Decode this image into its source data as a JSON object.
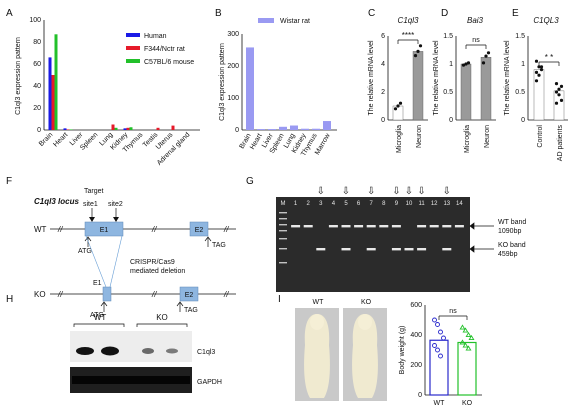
{
  "panel_letters": [
    "A",
    "B",
    "C",
    "D",
    "E",
    "F",
    "G",
    "H",
    "I"
  ],
  "colors": {
    "human": "#1a1ae6",
    "f344": "#e61a2a",
    "c57": "#22c02a",
    "wistar": "#9a9af2",
    "neuron": "#9a9a9a",
    "wt": "#2a2acc",
    "ko": "#22c02a",
    "gel_bg": "#2b2b2b",
    "gel_band": "#e8e8e8",
    "exon": "#8eb6e0"
  },
  "chart_data": [
    {
      "type": "bar",
      "ylabel": "C1ql3 expression pattern",
      "ylim": [
        0,
        100
      ],
      "yticks": [
        0,
        20,
        40,
        60,
        80,
        100
      ],
      "categories": [
        "Brain",
        "Heart",
        "Liver",
        "Spleen",
        "Lung",
        "Kidney",
        "Thymus",
        "Testis",
        "Uterus",
        "Adrenal gland"
      ],
      "series": [
        {
          "name": "Human",
          "values": [
            66,
            1.5,
            0,
            0,
            0,
            1.5,
            0,
            0,
            0,
            0
          ]
        },
        {
          "name": "F344/Nctr rat",
          "values": [
            50,
            0.5,
            0,
            0,
            5,
            2,
            0,
            2,
            4,
            0
          ]
        },
        {
          "name": "C57BL/6 mouse",
          "values": [
            87,
            0.5,
            0,
            0,
            2,
            2.5,
            0,
            0,
            0,
            0
          ]
        }
      ]
    },
    {
      "type": "bar",
      "ylabel": "C1ql3 expression pattern",
      "ylim": [
        0,
        300
      ],
      "yticks": [
        0,
        100,
        200,
        300
      ],
      "categories": [
        "Brain",
        "Heart",
        "Liver",
        "Spleen",
        "Lung",
        "Kidney",
        "Thymus",
        "Marrow"
      ],
      "series": [
        {
          "name": "Wistar rat",
          "values": [
            258,
            3,
            3,
            10,
            14,
            4,
            4,
            28
          ]
        }
      ]
    },
    {
      "type": "bar",
      "title": "C1ql3",
      "ylabel": "The relative mRNA level",
      "ylim": [
        0,
        6
      ],
      "yticks": [
        0,
        2,
        4,
        6
      ],
      "categories": [
        "Microglia",
        "Neuron"
      ],
      "values": [
        1,
        4.9
      ],
      "points": [
        [
          0.8,
          1.0,
          1.2
        ],
        [
          4.6,
          4.9,
          5.3
        ]
      ],
      "significance": "****"
    },
    {
      "type": "bar",
      "title": "Bai3",
      "ylabel": "The relative mRNA level",
      "ylim": [
        0,
        1.5
      ],
      "yticks": [
        0.0,
        0.5,
        1.0,
        1.5
      ],
      "categories": [
        "Microglia",
        "Neuron"
      ],
      "values": [
        1,
        1.12
      ],
      "points": [
        [
          0.98,
          1.0,
          1.02
        ],
        [
          1.02,
          1.14,
          1.2
        ]
      ],
      "significance": "ns"
    },
    {
      "type": "bar",
      "title": "C1QL3",
      "ylabel": "The relative mRNA level",
      "ylim": [
        0,
        1.5
      ],
      "yticks": [
        0.0,
        0.5,
        1.0,
        1.5
      ],
      "categories": [
        "Control",
        "AD patients"
      ],
      "values": [
        0.9,
        0.52
      ],
      "points": [
        [
          1.05,
          0.95,
          0.9,
          0.85,
          0.8,
          0.95,
          0.7
        ],
        [
          0.65,
          0.55,
          0.6,
          0.5,
          0.45,
          0.35,
          0.3
        ]
      ],
      "significance": "* *"
    },
    {
      "type": "bar",
      "ylabel": "Body weight (g)",
      "ylim": [
        0,
        600
      ],
      "yticks": [
        0,
        200,
        400,
        600
      ],
      "categories": [
        "WT",
        "KO"
      ],
      "values": [
        365,
        350
      ],
      "points": [
        [
          500,
          470,
          420,
          380,
          330,
          300,
          260
        ],
        [
          450,
          430,
          400,
          380,
          350,
          330,
          310
        ]
      ],
      "significance": "ns"
    }
  ],
  "panelF": {
    "locus_title": "C1ql3 locus",
    "target_label": "Target",
    "site1": "site1",
    "site2": "site2",
    "wt": "WT",
    "ko": "KO",
    "e1": "E1",
    "e2": "E2",
    "atg": "ATG",
    "tag": "TAG",
    "deletion_line1": "CRISPR/Cas9",
    "deletion_line2": "mediated deletion",
    "break_mark": "//"
  },
  "panelG": {
    "lanes": [
      "M",
      "1",
      "2",
      "3",
      "4",
      "5",
      "6",
      "7",
      "8",
      "9",
      "10",
      "11",
      "12",
      "13",
      "14"
    ],
    "arrow_lanes": [
      "3",
      "5",
      "7",
      "9",
      "10",
      "11",
      "13"
    ],
    "arrow_glyph": "⇩",
    "wt_band_line1": "WT band",
    "wt_band_line2": "1090bp",
    "ko_band_line1": "KO band",
    "ko_band_line2": "459bp"
  },
  "panelH": {
    "wt": "WT",
    "ko": "KO",
    "c1ql3": "C1ql3",
    "gapdh": "GAPDH"
  },
  "panelI": {
    "wt_photo_label": "WT",
    "ko_photo_label": "KO"
  }
}
